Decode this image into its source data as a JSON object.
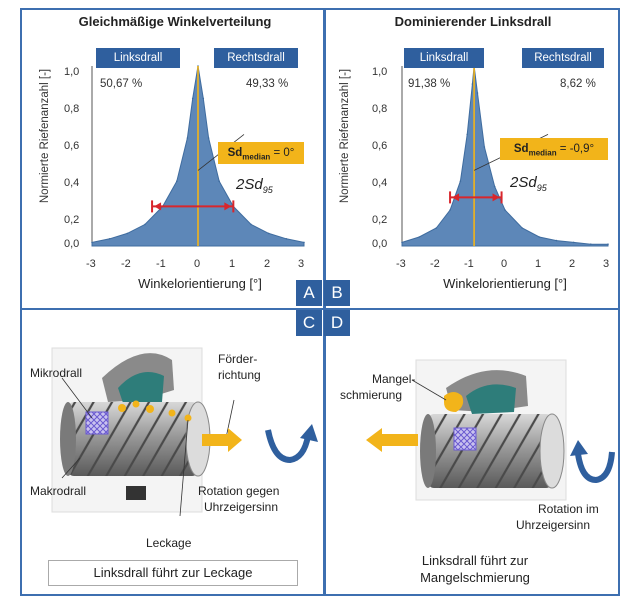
{
  "panel_a": {
    "title": "Gleichmäßige Winkelverteilung",
    "ylabel": "Normierte Riefenanzahl [-]",
    "xlabel": "Winkelorientierung [°]",
    "left_label": "Linksdrall",
    "right_label": "Rechtsdrall",
    "left_pct": "50,67 %",
    "right_pct": "49,33 %",
    "sd_median_prefix": "Sd",
    "sd_median_sub": "median",
    "sd_median_value": " = 0°",
    "sd95_prefix": "2Sd",
    "sd95_sub": "95"
  },
  "panel_b": {
    "title": "Dominierender Linksdrall",
    "ylabel": "Normierte Riefenanzahl [-]",
    "xlabel": "Winkelorientierung [°]",
    "left_label": "Linksdrall",
    "right_label": "Rechtsdrall",
    "left_pct": "91,38 %",
    "right_pct": "8,62 %",
    "sd_median_prefix": "Sd",
    "sd_median_sub": "median",
    "sd_median_value": " = -0,9°",
    "sd95_prefix": "2Sd",
    "sd95_sub": "95"
  },
  "panel_labels": {
    "a": "A",
    "b": "B",
    "c": "C",
    "d": "D"
  },
  "panel_c": {
    "mikrodrall": "Mikrodrall",
    "makrodrall": "Makrodrall",
    "foerder_1": "Förder-",
    "foerder_2": "richtung",
    "rotation_1": "Rotation gegen",
    "rotation_2": "Uhrzeigersinn",
    "leckage": "Leckage",
    "caption": "Linksdrall führt zur Leckage"
  },
  "panel_d": {
    "mangel_1": "Mangel-",
    "mangel_2": "schmierung",
    "rotation_1": "Rotation im",
    "rotation_2": "Uhrzeigersinn",
    "caption_1": "Linksdrall führt zur",
    "caption_2": "Mangelschmierung"
  },
  "colors": {
    "frame": "#3d6fb0",
    "badge": "#2f5f9e",
    "distribution_fill": "#5d87b8",
    "distribution_left": "#3f6c9f",
    "median_box": "#f2b41a",
    "error_bar": "#d8262c",
    "arrow": "#f2b41a",
    "rotation_arrow": "#2f5f9e",
    "seal": "#2e7d7a"
  },
  "chart_data": [
    {
      "type": "area",
      "title": "Gleichmäßige Winkelverteilung",
      "xlabel": "Winkelorientierung [°]",
      "ylabel": "Normierte Riefenanzahl [-]",
      "xlim": [
        -3,
        3
      ],
      "ylim": [
        0,
        1.0
      ],
      "x_ticks": [
        "-3",
        "-2",
        "-1",
        "0",
        "1",
        "2",
        "3"
      ],
      "y_ticks": [
        "0,0",
        "0,2",
        "0,4",
        "0,6",
        "0,8",
        "1,0"
      ],
      "x": [
        -3.0,
        -2.5,
        -2.0,
        -1.5,
        -1.0,
        -0.6,
        -0.3,
        -0.15,
        0.0,
        0.15,
        0.3,
        0.6,
        1.0,
        1.5,
        2.0,
        2.5,
        3.0
      ],
      "y": [
        0.02,
        0.04,
        0.07,
        0.12,
        0.22,
        0.36,
        0.6,
        0.82,
        1.0,
        0.82,
        0.6,
        0.36,
        0.22,
        0.12,
        0.07,
        0.04,
        0.02
      ],
      "median": 0.0,
      "sd95_range": [
        -1.3,
        1.0
      ],
      "sd95_level": 0.22
    },
    {
      "type": "area",
      "title": "Dominierender Linksdrall",
      "xlabel": "Winkelorientierung [°]",
      "ylabel": "Normierte Riefenanzahl [-]",
      "xlim": [
        -3,
        3
      ],
      "ylim": [
        0,
        1.0
      ],
      "x_ticks": [
        "-3",
        "-2",
        "-1",
        "0",
        "1",
        "2",
        "3"
      ],
      "y_ticks": [
        "0,0",
        "0,2",
        "0,4",
        "0,6",
        "0,8",
        "1,0"
      ],
      "x": [
        -3.0,
        -2.5,
        -2.0,
        -1.6,
        -1.3,
        -1.1,
        -0.95,
        -0.9,
        -0.8,
        -0.6,
        -0.3,
        0.0,
        0.5,
        1.0,
        1.5,
        2.0,
        2.5,
        3.0
      ],
      "y": [
        0.02,
        0.05,
        0.1,
        0.2,
        0.36,
        0.62,
        0.9,
        1.0,
        0.85,
        0.55,
        0.33,
        0.2,
        0.1,
        0.05,
        0.03,
        0.02,
        0.01,
        0.01
      ],
      "median": -0.9,
      "sd95_range": [
        -1.6,
        -0.1
      ],
      "sd95_level": 0.27
    }
  ]
}
